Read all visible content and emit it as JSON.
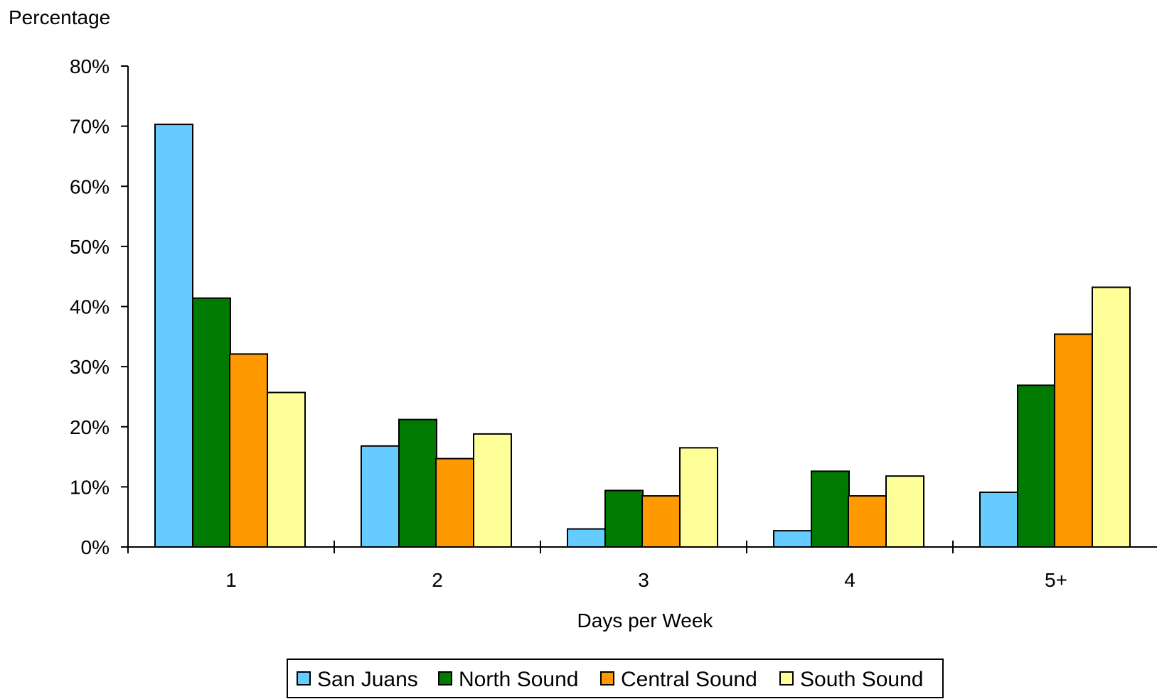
{
  "chart_data": {
    "type": "bar",
    "title": "",
    "ylabel": "Percentage",
    "xlabel": "Days per Week",
    "ylim": [
      0,
      80
    ],
    "yticks": [
      0,
      10,
      20,
      30,
      40,
      50,
      60,
      70,
      80
    ],
    "ytick_labels": [
      "0%",
      "10%",
      "20%",
      "30%",
      "40%",
      "50%",
      "60%",
      "70%",
      "80%"
    ],
    "categories": [
      "1",
      "2",
      "3",
      "4",
      "5+"
    ],
    "grid": false,
    "legend_position": "bottom",
    "series": [
      {
        "name": "San Juans",
        "color": "#66CCFF",
        "values": [
          70.3,
          16.8,
          3.0,
          2.7,
          9.1
        ]
      },
      {
        "name": "North Sound",
        "color": "#007A00",
        "values": [
          41.4,
          21.2,
          9.4,
          12.6,
          26.9
        ]
      },
      {
        "name": "Central Sound",
        "color": "#FF9900",
        "values": [
          32.1,
          14.7,
          8.5,
          8.5,
          35.4
        ]
      },
      {
        "name": "South Sound",
        "color": "#FFFF99",
        "values": [
          25.7,
          18.8,
          16.5,
          11.8,
          43.2
        ]
      }
    ]
  }
}
